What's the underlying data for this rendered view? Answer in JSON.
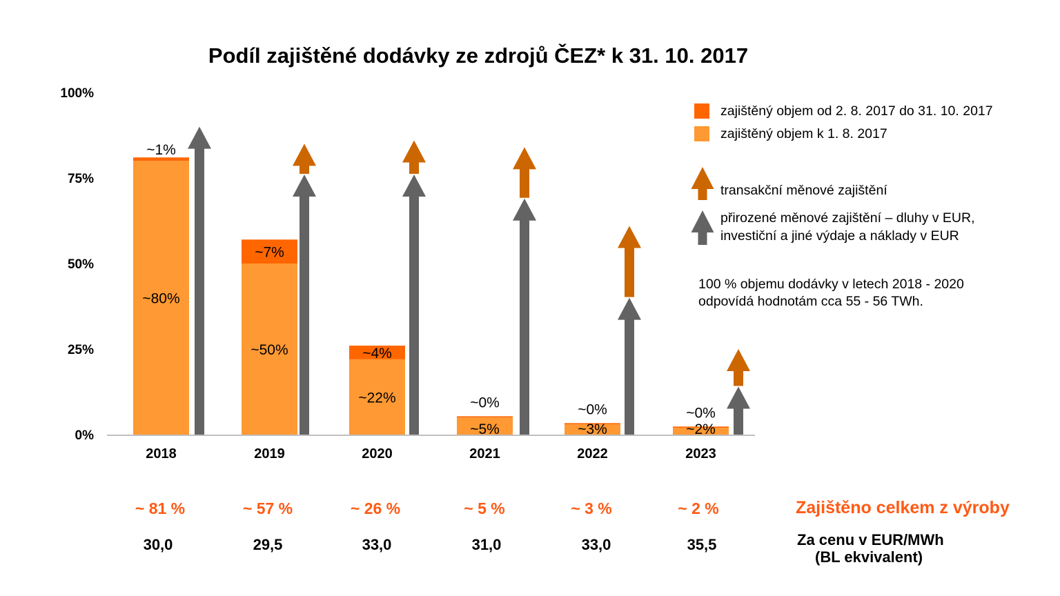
{
  "chart_data": {
    "type": "bar",
    "stacked": true,
    "title": "Podíl zajištěné dodávky ze zdrojů ČEZ* k 31. 10. 2017",
    "xlabel": "",
    "ylabel": "",
    "ylim": [
      0,
      100
    ],
    "yticks": [
      "0%",
      "25%",
      "50%",
      "75%",
      "100%"
    ],
    "ytick_values": [
      0,
      25,
      50,
      75,
      100
    ],
    "categories": [
      "2018",
      "2019",
      "2020",
      "2021",
      "2022",
      "2023"
    ],
    "series": [
      {
        "name": "zajištěný objem k 1. 8. 2017",
        "color": "#ff9933",
        "values": [
          80,
          50,
          22,
          5,
          3,
          2
        ],
        "labels": [
          "~80%",
          "~50%",
          "~22%",
          "~5%",
          "~3%",
          "~2%"
        ]
      },
      {
        "name": "zajištěný objem od 2. 8. 2017 do 31. 10. 2017",
        "color": "#ff6600",
        "values": [
          1,
          7,
          4,
          0,
          0,
          0
        ],
        "labels": [
          "~1%",
          "~7%",
          "~4%",
          "~0%",
          "~0%",
          "~0%"
        ]
      }
    ],
    "arrows": {
      "natural": {
        "name": "přirozené měnové zajištění – dluhy v EUR, investiční a jiné výdaje a náklady v EUR",
        "color": "#636363",
        "tops": [
          90,
          76,
          76,
          69,
          40,
          14
        ]
      },
      "transaction": {
        "name": "transakční měnové zajištění",
        "color": "#cc6600",
        "tops": [
          null,
          85,
          86,
          84,
          61,
          25
        ]
      }
    },
    "legend_position": "top-right"
  },
  "legend": {
    "items": [
      {
        "label": "zajištěný objem od 2. 8. 2017 do 31. 10. 2017",
        "color": "#ff6600"
      },
      {
        "label": "zajištěný objem k 1. 8. 2017",
        "color": "#ff9933"
      }
    ],
    "arrow_transaction": {
      "label": "transakční měnové zajištění",
      "color": "#cc6600"
    },
    "arrow_natural": {
      "line1": "přirozené měnové zajištění – dluhy v EUR,",
      "line2": "investiční a jiné výdaje a náklady v EUR",
      "color": "#636363"
    }
  },
  "note": {
    "line1": "100 % objemu dodávky v letech 2018 - 2020",
    "line2": "odpovídá hodnotám cca 55 - 56 TWh."
  },
  "totals": {
    "label": "Zajištěno celkem z výroby",
    "values": [
      "~ 81 %",
      "~ 57 %",
      "~ 26 %",
      "~ 5 %",
      "~ 3 %",
      "~ 2 %"
    ],
    "color": "#ff5a14"
  },
  "prices": {
    "label_line1": "Za cenu v EUR/MWh",
    "label_line2": "(BL ekvivalent)",
    "values": [
      "30,0",
      "29,5",
      "33,0",
      "31,0",
      "33,0",
      "35,5"
    ]
  }
}
